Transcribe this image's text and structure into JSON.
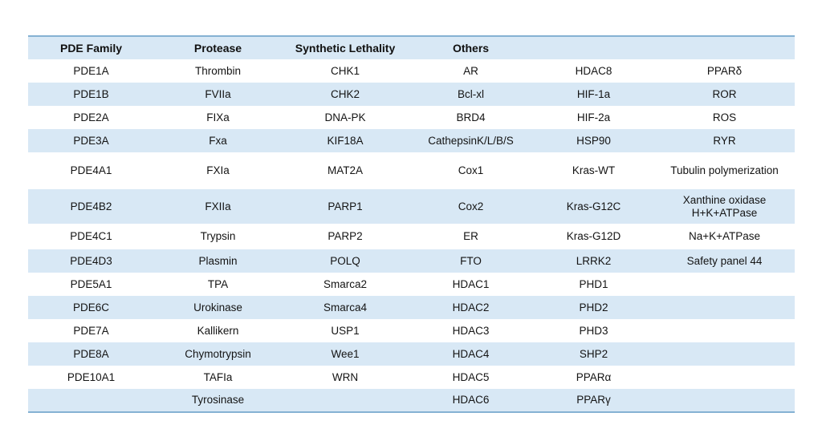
{
  "colors": {
    "stripe_blue": "#D8E8F5",
    "border_blue": "#85B2D3",
    "text": "#141414"
  },
  "table": {
    "headers": [
      "PDE Family",
      "Protease",
      "Synthetic Lethality",
      "Others",
      "",
      ""
    ],
    "rows": [
      [
        "PDE1A",
        "Thrombin",
        "CHK1",
        "AR",
        "HDAC8",
        "PPARδ"
      ],
      [
        "PDE1B",
        "FVIIa",
        "CHK2",
        "Bcl-xl",
        "HIF-1a",
        "ROR"
      ],
      [
        "PDE2A",
        "FIXa",
        "DNA-PK",
        "BRD4",
        "HIF-2a",
        "ROS"
      ],
      [
        "PDE3A",
        "Fxa",
        "KIF18A",
        "CathepsinK/L/B/S",
        "HSP90",
        "RYR"
      ],
      [
        "PDE4A1",
        "FXIa",
        "MAT2A",
        "Cox1",
        "Kras-WT",
        "Tubulin polymerization"
      ],
      [
        "PDE4B2",
        "FXIIa",
        "PARP1",
        "Cox2",
        "Kras-G12C",
        "Xanthine oxidase\nH+K+ATPase"
      ],
      [
        "PDE4C1",
        "Trypsin",
        "PARP2",
        "ER",
        "Kras-G12D",
        "Na+K+ATPase"
      ],
      [
        "PDE4D3",
        "Plasmin",
        "POLQ",
        "FTO",
        "LRRK2",
        "Safety panel 44"
      ],
      [
        "PDE5A1",
        "TPA",
        "Smarca2",
        "HDAC1",
        "PHD1",
        ""
      ],
      [
        "PDE6C",
        "Urokinase",
        "Smarca4",
        "HDAC2",
        "PHD2",
        ""
      ],
      [
        "PDE7A",
        "Kallikern",
        "USP1",
        "HDAC3",
        "PHD3",
        ""
      ],
      [
        "PDE8A",
        "Chymotrypsin",
        "Wee1",
        "HDAC4",
        "SHP2",
        ""
      ],
      [
        "PDE10A1",
        "TAFIa",
        "WRN",
        "HDAC5",
        "PPARα",
        ""
      ],
      [
        "",
        "Tyrosinase",
        "",
        "HDAC6",
        "PPARγ",
        ""
      ]
    ]
  }
}
